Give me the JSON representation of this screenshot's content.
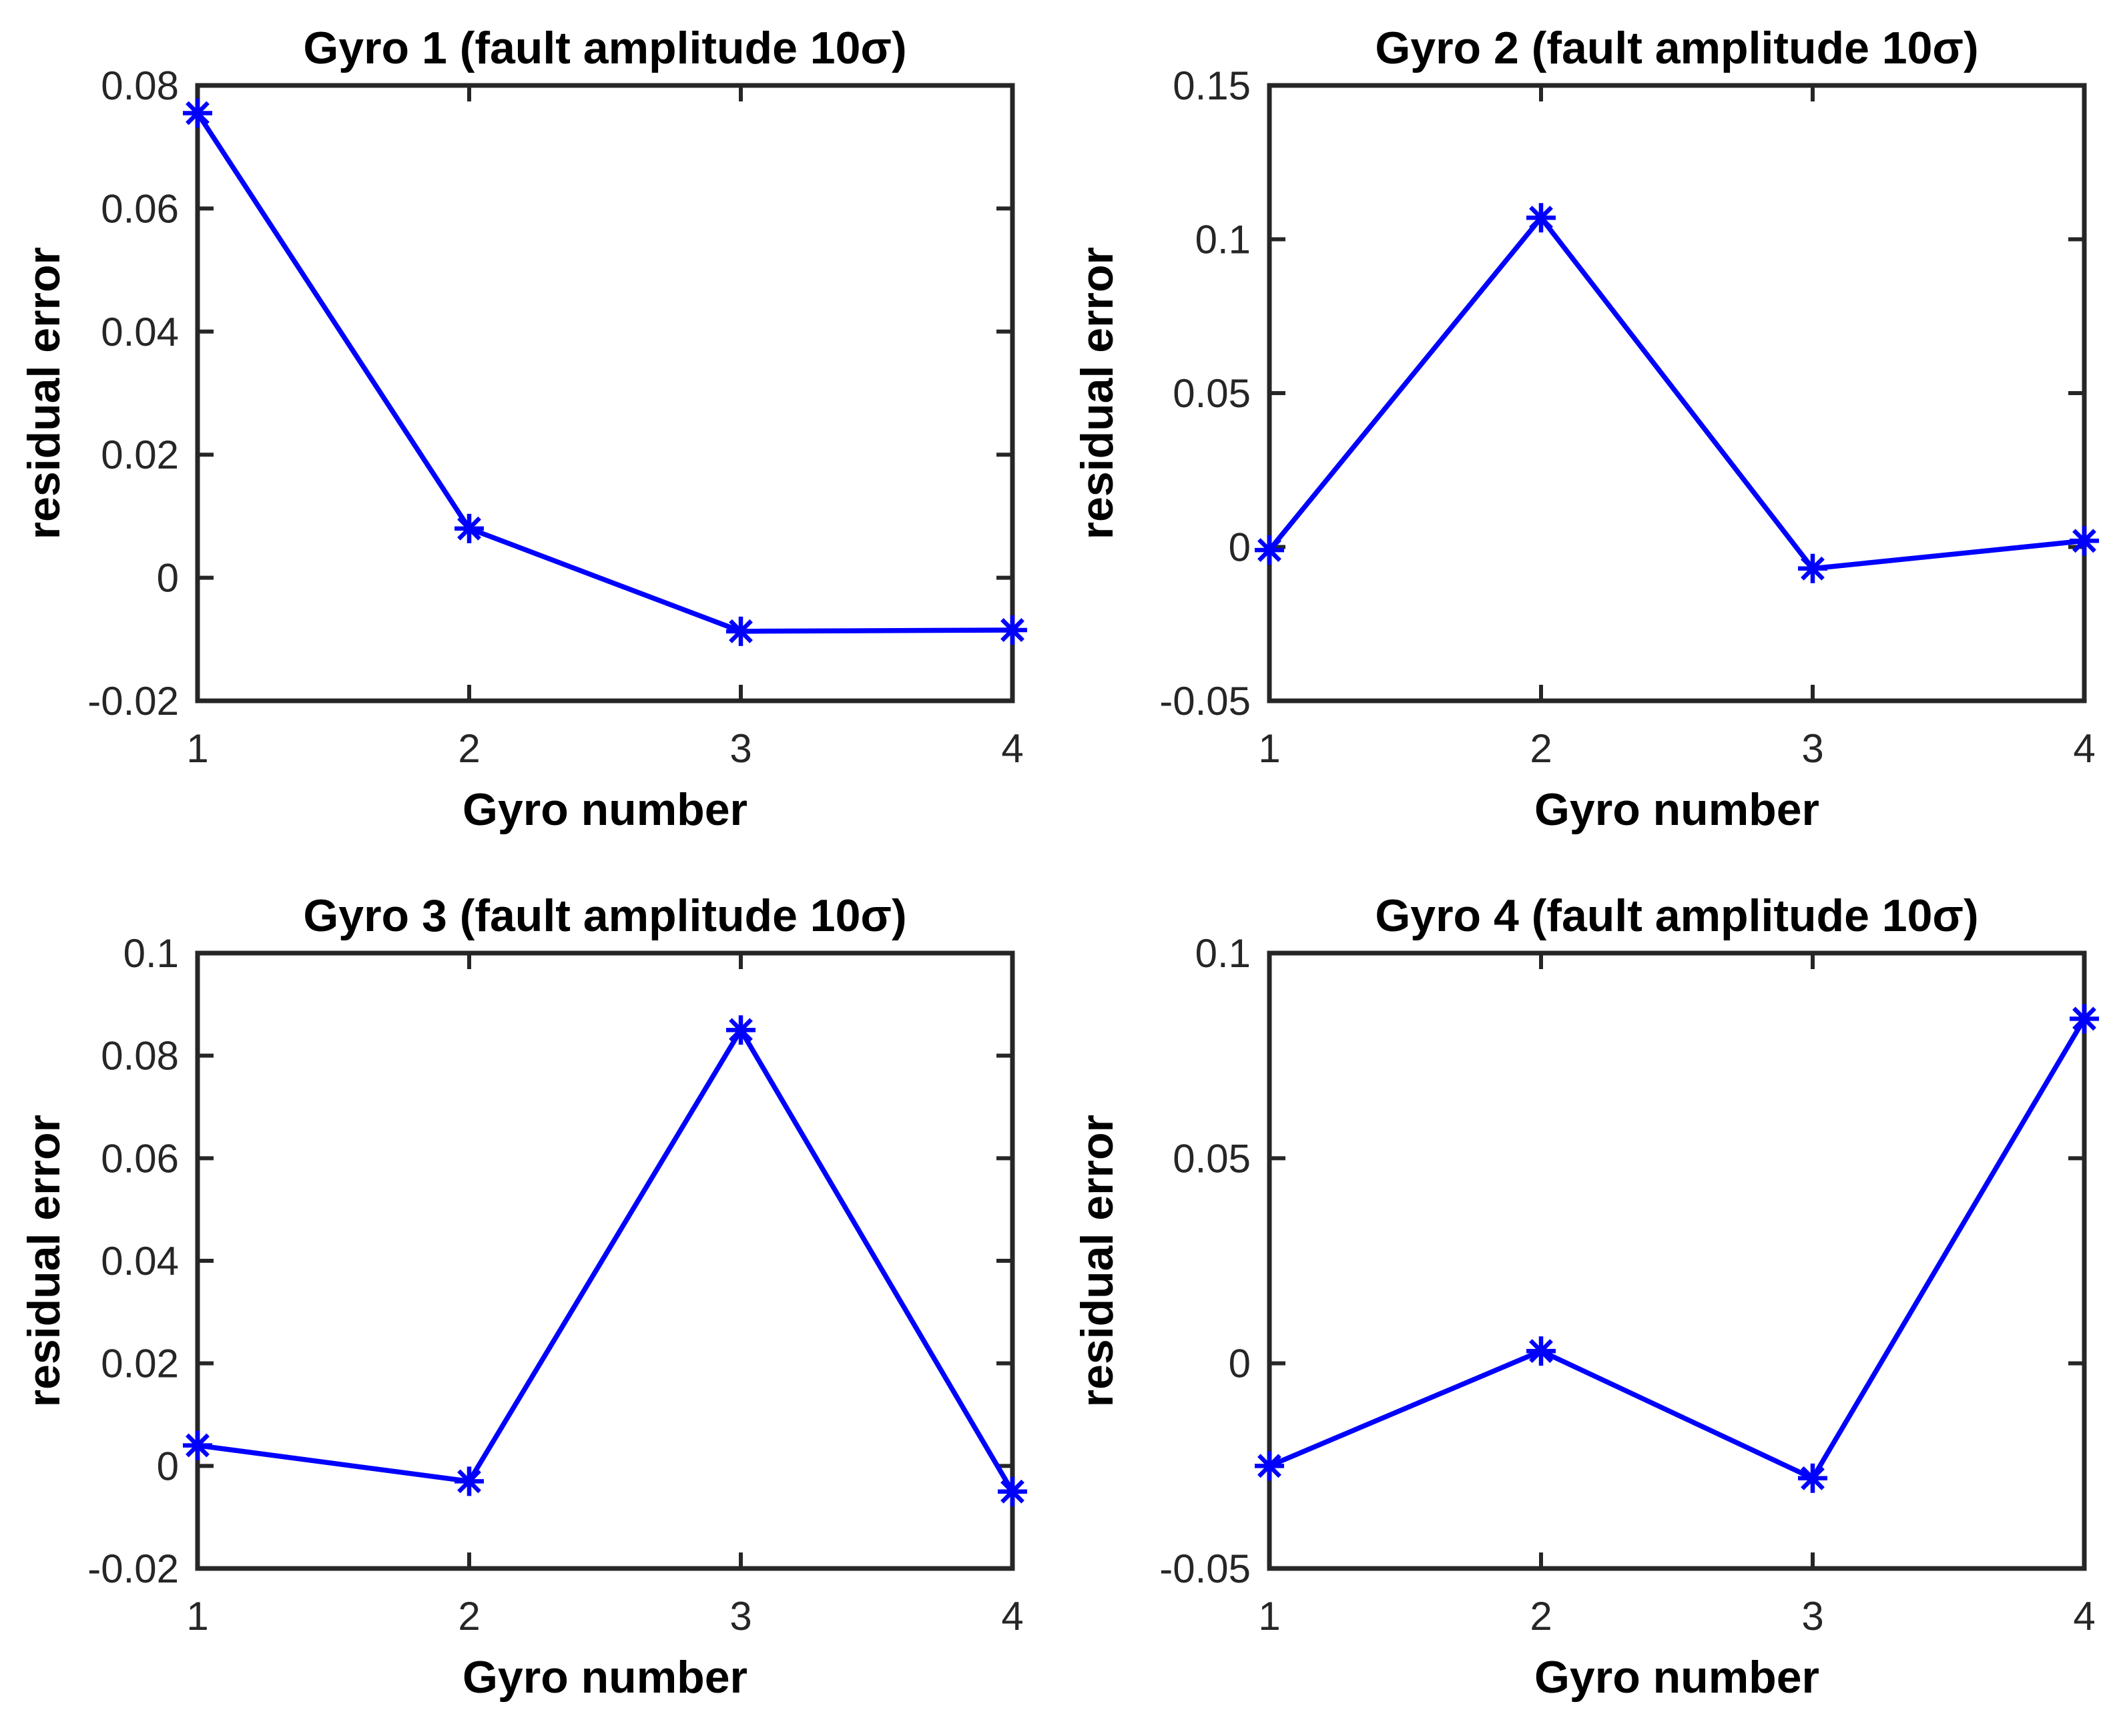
{
  "figure": {
    "background": "#ffffff",
    "axis_color": "#262626",
    "tick_label_color": "#262626",
    "label_color": "#000000",
    "line_color": "#0000FF"
  },
  "chart_data": [
    {
      "type": "line",
      "title": "Gyro 1 (fault amplitude 10σ)",
      "xlabel": "Gyro number",
      "ylabel": "residual error",
      "x": [
        1,
        2,
        3,
        4
      ],
      "values": [
        0.0755,
        0.008,
        -0.0087,
        -0.0085
      ],
      "xlim": [
        1,
        4
      ],
      "ylim": [
        -0.02,
        0.08
      ],
      "xtick_values": [
        1,
        2,
        3,
        4
      ],
      "xtick_labels": [
        "1",
        "2",
        "3",
        "4"
      ],
      "ytick_values": [
        -0.02,
        0,
        0.02,
        0.04,
        0.06,
        0.08
      ],
      "ytick_labels": [
        "-0.02",
        "0",
        "0.02",
        "0.04",
        "0.06",
        "0.08"
      ],
      "marker": "asterisk",
      "grid": false,
      "legend": "none"
    },
    {
      "type": "line",
      "title": "Gyro 2 (fault amplitude 10σ)",
      "xlabel": "Gyro number",
      "ylabel": "residual error",
      "x": [
        1,
        2,
        3,
        4
      ],
      "values": [
        -0.001,
        0.107,
        -0.007,
        0.002
      ],
      "xlim": [
        1,
        4
      ],
      "ylim": [
        -0.05,
        0.15
      ],
      "xtick_values": [
        1,
        2,
        3,
        4
      ],
      "xtick_labels": [
        "1",
        "2",
        "3",
        "4"
      ],
      "ytick_values": [
        -0.05,
        0,
        0.05,
        0.1,
        0.15
      ],
      "ytick_labels": [
        "-0.05",
        "0",
        "0.05",
        "0.1",
        "0.15"
      ],
      "marker": "asterisk",
      "grid": false,
      "legend": "none"
    },
    {
      "type": "line",
      "title": "Gyro 3 (fault amplitude 10σ)",
      "xlabel": "Gyro number",
      "ylabel": "residual error",
      "x": [
        1,
        2,
        3,
        4
      ],
      "values": [
        0.004,
        -0.003,
        0.085,
        -0.005
      ],
      "xlim": [
        1,
        4
      ],
      "ylim": [
        -0.02,
        0.1
      ],
      "xtick_values": [
        1,
        2,
        3,
        4
      ],
      "xtick_labels": [
        "1",
        "2",
        "3",
        "4"
      ],
      "ytick_values": [
        -0.02,
        0,
        0.02,
        0.04,
        0.06,
        0.08,
        0.1
      ],
      "ytick_labels": [
        "-0.02",
        "0",
        "0.02",
        "0.04",
        "0.06",
        "0.08",
        "0.1"
      ],
      "marker": "asterisk",
      "grid": false,
      "legend": "none"
    },
    {
      "type": "line",
      "title": "Gyro 4 (fault amplitude 10σ)",
      "xlabel": "Gyro number",
      "ylabel": "residual error",
      "x": [
        1,
        2,
        3,
        4
      ],
      "values": [
        -0.025,
        0.003,
        -0.028,
        0.084
      ],
      "xlim": [
        1,
        4
      ],
      "ylim": [
        -0.05,
        0.1
      ],
      "xtick_values": [
        1,
        2,
        3,
        4
      ],
      "xtick_labels": [
        "1",
        "2",
        "3",
        "4"
      ],
      "ytick_values": [
        -0.05,
        0,
        0.05,
        0.1
      ],
      "ytick_labels": [
        "-0.05",
        "0",
        "0.05",
        "0.1"
      ],
      "marker": "asterisk",
      "grid": false,
      "legend": "none"
    }
  ]
}
